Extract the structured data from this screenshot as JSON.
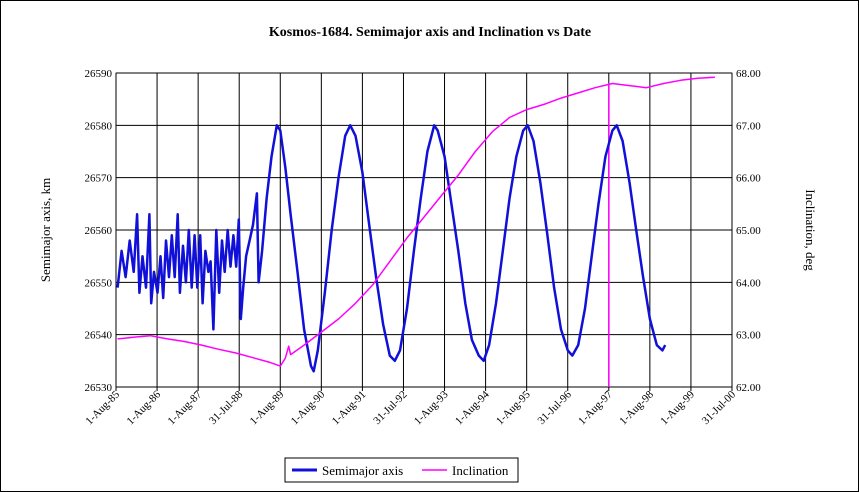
{
  "chart_data": {
    "type": "line",
    "title": "Kosmos-1684.  Semimajor axis and Inclination vs Date",
    "ylabel": "Semimajor axis, km",
    "y2label": "Inclination, deg",
    "xlabel": "",
    "ylim": [
      26530,
      26590
    ],
    "y2lim": [
      62.0,
      68.0
    ],
    "yticks": [
      "26530",
      "26540",
      "26550",
      "26560",
      "26570",
      "26580",
      "26590"
    ],
    "y2ticks": [
      "62.00",
      "63.00",
      "64.00",
      "65.00",
      "66.00",
      "67.00",
      "68.00"
    ],
    "xticks": [
      "1-Aug-85",
      "1-Aug-86",
      "1-Aug-87",
      "31-Jul-88",
      "1-Aug-89",
      "1-Aug-90",
      "1-Aug-91",
      "31-Jul-92",
      "1-Aug-93",
      "1-Aug-94",
      "1-Aug-95",
      "31-Jul-96",
      "1-Aug-97",
      "1-Aug-98",
      "1-Aug-99",
      "31-Jul-00"
    ],
    "x_start": "1985-08-01",
    "x_end": "2000-07-31",
    "grid": true,
    "legend_position": "bottom",
    "vertical_marker_x": "1997-08-01",
    "series": [
      {
        "name": "Semimajor axis",
        "axis": "left",
        "color": "#1010d8",
        "points": [
          [
            "1985-08-15",
            26549
          ],
          [
            "1985-09-20",
            26556
          ],
          [
            "1985-10-25",
            26551
          ],
          [
            "1985-12-01",
            26558
          ],
          [
            "1986-01-05",
            26552
          ],
          [
            "1986-02-05",
            26563
          ],
          [
            "1986-02-25",
            26548
          ],
          [
            "1986-03-25",
            26555
          ],
          [
            "1986-04-25",
            26549
          ],
          [
            "1986-05-25",
            26563
          ],
          [
            "1986-06-10",
            26546
          ],
          [
            "1986-07-05",
            26552
          ],
          [
            "1986-08-05",
            26548
          ],
          [
            "1986-09-01",
            26555
          ],
          [
            "1986-09-25",
            26547
          ],
          [
            "1986-10-20",
            26558
          ],
          [
            "1986-11-15",
            26551
          ],
          [
            "1986-12-10",
            26559
          ],
          [
            "1987-01-05",
            26551
          ],
          [
            "1987-02-01",
            26563
          ],
          [
            "1987-02-20",
            26548
          ],
          [
            "1987-03-20",
            26557
          ],
          [
            "1987-04-15",
            26550
          ],
          [
            "1987-05-10",
            26560
          ],
          [
            "1987-06-05",
            26549
          ],
          [
            "1987-07-01",
            26559
          ],
          [
            "1987-07-25",
            26549
          ],
          [
            "1987-08-20",
            26559
          ],
          [
            "1987-09-10",
            26546
          ],
          [
            "1987-10-05",
            26556
          ],
          [
            "1987-11-01",
            26552
          ],
          [
            "1987-11-20",
            26554
          ],
          [
            "1987-12-15",
            26541
          ],
          [
            "1988-01-10",
            26560
          ],
          [
            "1988-02-05",
            26548
          ],
          [
            "1988-03-01",
            26558
          ],
          [
            "1988-03-25",
            26552
          ],
          [
            "1988-04-20",
            26560
          ],
          [
            "1988-05-15",
            26553
          ],
          [
            "1988-06-10",
            26559
          ],
          [
            "1988-07-05",
            26553
          ],
          [
            "1988-07-28",
            26562
          ],
          [
            "1988-08-15",
            26543
          ],
          [
            "1988-09-05",
            26549
          ],
          [
            "1988-10-01",
            26555
          ],
          [
            "1988-11-01",
            26558
          ],
          [
            "1988-12-01",
            26561
          ],
          [
            "1989-01-05",
            26567
          ],
          [
            "1989-01-20",
            26550
          ],
          [
            "1989-02-20",
            26556
          ],
          [
            "1989-04-01",
            26566
          ],
          [
            "1989-05-15",
            26574
          ],
          [
            "1989-07-01",
            26580
          ],
          [
            "1989-08-01",
            26579
          ],
          [
            "1989-09-15",
            26572
          ],
          [
            "1989-11-01",
            26563
          ],
          [
            "1990-01-01",
            26552
          ],
          [
            "1990-03-01",
            26541
          ],
          [
            "1990-05-01",
            26534
          ],
          [
            "1990-05-25",
            26533
          ],
          [
            "1990-07-01",
            26537
          ],
          [
            "1990-09-01",
            26548
          ],
          [
            "1990-11-01",
            26560
          ],
          [
            "1991-01-01",
            26570
          ],
          [
            "1991-03-01",
            26578
          ],
          [
            "1991-04-15",
            26580
          ],
          [
            "1991-06-01",
            26578
          ],
          [
            "1991-08-01",
            26571
          ],
          [
            "1991-10-01",
            26561
          ],
          [
            "1991-12-01",
            26551
          ],
          [
            "1992-02-01",
            26542
          ],
          [
            "1992-04-01",
            26536
          ],
          [
            "1992-05-15",
            26535
          ],
          [
            "1992-07-01",
            26537
          ],
          [
            "1992-09-01",
            26545
          ],
          [
            "1992-11-01",
            26556
          ],
          [
            "1993-01-01",
            26566
          ],
          [
            "1993-03-01",
            26575
          ],
          [
            "1993-05-01",
            26580
          ],
          [
            "1993-06-01",
            26579
          ],
          [
            "1993-08-01",
            26574
          ],
          [
            "1993-10-01",
            26565
          ],
          [
            "1993-12-01",
            26556
          ],
          [
            "1994-02-01",
            26546
          ],
          [
            "1994-04-01",
            26539
          ],
          [
            "1994-06-01",
            26536
          ],
          [
            "1994-07-15",
            26535
          ],
          [
            "1994-09-01",
            26538
          ],
          [
            "1994-11-01",
            26546
          ],
          [
            "1995-01-01",
            26556
          ],
          [
            "1995-03-01",
            26566
          ],
          [
            "1995-05-01",
            26574
          ],
          [
            "1995-07-01",
            26579
          ],
          [
            "1995-08-10",
            26580
          ],
          [
            "1995-10-01",
            26577
          ],
          [
            "1995-12-01",
            26569
          ],
          [
            "1996-02-01",
            26559
          ],
          [
            "1996-04-01",
            26549
          ],
          [
            "1996-06-01",
            26541
          ],
          [
            "1996-08-01",
            26537
          ],
          [
            "1996-09-10",
            26536
          ],
          [
            "1996-11-01",
            26538
          ],
          [
            "1997-01-01",
            26545
          ],
          [
            "1997-03-01",
            26555
          ],
          [
            "1997-05-01",
            26565
          ],
          [
            "1997-07-01",
            26574
          ],
          [
            "1997-09-01",
            26579
          ],
          [
            "1997-10-10",
            26580
          ],
          [
            "1997-12-01",
            26577
          ],
          [
            "1998-02-01",
            26569
          ],
          [
            "1998-04-01",
            26560
          ],
          [
            "1998-06-01",
            26551
          ],
          [
            "1998-08-01",
            26543
          ],
          [
            "1998-10-01",
            26538
          ],
          [
            "1998-11-20",
            26537
          ],
          [
            "1998-12-15",
            26538
          ]
        ]
      },
      {
        "name": "Inclination",
        "axis": "right",
        "color": "#ff00ff",
        "points": [
          [
            "1985-08-15",
            62.92
          ],
          [
            "1986-01-01",
            62.95
          ],
          [
            "1986-06-01",
            62.98
          ],
          [
            "1986-11-01",
            62.92
          ],
          [
            "1987-04-01",
            62.87
          ],
          [
            "1987-09-01",
            62.8
          ],
          [
            "1988-02-01",
            62.72
          ],
          [
            "1988-07-01",
            62.65
          ],
          [
            "1988-12-01",
            62.56
          ],
          [
            "1989-05-01",
            62.47
          ],
          [
            "1989-08-01",
            62.4
          ],
          [
            "1989-09-15",
            62.55
          ],
          [
            "1989-10-15",
            62.78
          ],
          [
            "1989-11-01",
            62.62
          ],
          [
            "1990-03-01",
            62.8
          ],
          [
            "1990-08-01",
            63.05
          ],
          [
            "1991-01-01",
            63.3
          ],
          [
            "1991-06-01",
            63.6
          ],
          [
            "1991-11-01",
            63.95
          ],
          [
            "1992-04-01",
            64.4
          ],
          [
            "1992-09-01",
            64.85
          ],
          [
            "1993-02-01",
            65.25
          ],
          [
            "1993-07-01",
            65.65
          ],
          [
            "1993-12-01",
            66.05
          ],
          [
            "1994-05-01",
            66.5
          ],
          [
            "1994-10-01",
            66.88
          ],
          [
            "1995-03-01",
            67.15
          ],
          [
            "1995-08-01",
            67.3
          ],
          [
            "1996-01-01",
            67.4
          ],
          [
            "1996-06-01",
            67.52
          ],
          [
            "1996-11-01",
            67.62
          ],
          [
            "1997-04-01",
            67.72
          ],
          [
            "1997-09-01",
            67.8
          ],
          [
            "1998-02-01",
            67.76
          ],
          [
            "1998-07-01",
            67.72
          ],
          [
            "1998-12-01",
            67.8
          ],
          [
            "1999-05-01",
            67.86
          ],
          [
            "1999-10-01",
            67.9
          ],
          [
            "2000-03-01",
            67.92
          ]
        ]
      }
    ]
  }
}
